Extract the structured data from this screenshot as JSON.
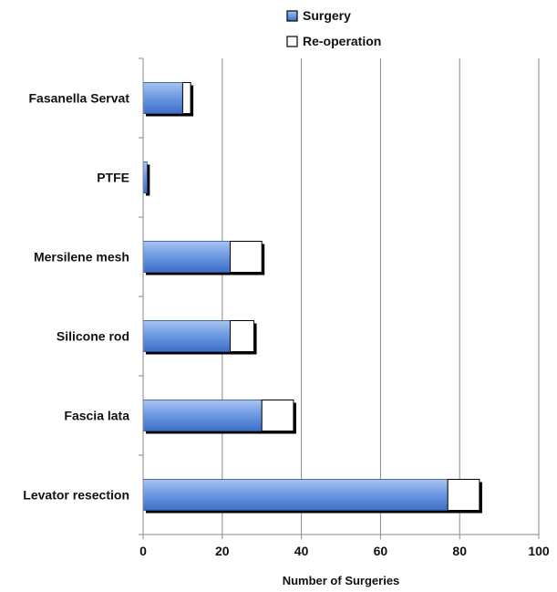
{
  "chart_data": {
    "type": "bar",
    "orientation": "horizontal",
    "stacked": true,
    "categories": [
      "Fasanella Servat",
      "PTFE",
      "Mersilene mesh",
      "Silicone rod",
      "Fascia lata",
      "Levator resection"
    ],
    "series": [
      {
        "name": "Surgery",
        "values": [
          10,
          1,
          22,
          22,
          30,
          77
        ],
        "color": "#5b8ee0"
      },
      {
        "name": "Re-operation",
        "values": [
          2,
          0,
          8,
          6,
          8,
          8
        ],
        "color": "#ffffff"
      }
    ],
    "xlabel": "Number of Surgeries",
    "ylabel": "",
    "xlim": [
      0,
      100
    ],
    "xticks": [
      "0",
      "20",
      "40",
      "60",
      "80",
      "100"
    ],
    "grid": "vertical",
    "legend_position": "top-right"
  }
}
